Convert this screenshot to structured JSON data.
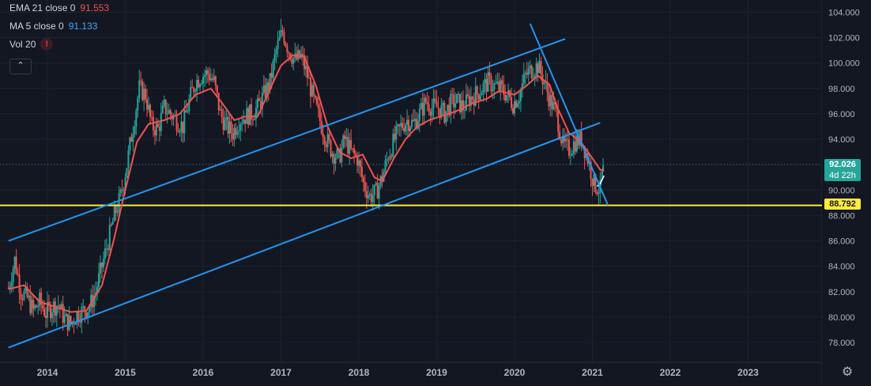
{
  "legend": {
    "ema": {
      "label": "EMA 21 close 0",
      "value": "91.553"
    },
    "ma": {
      "label": "MA 5 close 0",
      "value": "91.133"
    },
    "vol": {
      "label": "Vol 20",
      "warning": "!"
    },
    "collapse_icon": "chevron-up-icon"
  },
  "price_axis": {
    "labels": [
      "104.000",
      "102.000",
      "100.000",
      "98.000",
      "96.000",
      "94.000",
      "92.000",
      "90.000",
      "88.000",
      "86.000",
      "84.000",
      "82.000",
      "80.000",
      "78.000"
    ],
    "current_price": "92.026",
    "countdown": "4d 22h",
    "horizontal_line_price": "88.792"
  },
  "time_axis": {
    "labels": [
      "2014",
      "2015",
      "2016",
      "2017",
      "2018",
      "2019",
      "2020",
      "2021",
      "2022",
      "2023"
    ]
  },
  "colors": {
    "background": "#131722",
    "up_candle": "#26a69a",
    "down_candle": "#ef5350",
    "ema": "#ef5350",
    "trendline": "#2196f3",
    "horizontal_line": "#ffeb3b",
    "price_tag": "#26a69a"
  },
  "settings_icon": "gear-icon",
  "chart_data": {
    "type": "line",
    "title": "",
    "xlim": [
      2013.5,
      2023.7
    ],
    "ylim": [
      76.8,
      104.8
    ],
    "series": [
      {
        "name": "EMA 21 close 0",
        "points": [
          [
            2013.5,
            82.2
          ],
          [
            2013.7,
            82.5
          ],
          [
            2013.9,
            81.2
          ],
          [
            2014.1,
            80.8
          ],
          [
            2014.3,
            80.4
          ],
          [
            2014.5,
            80.5
          ],
          [
            2014.7,
            82.5
          ],
          [
            2014.85,
            86.0
          ],
          [
            2015.0,
            90.0
          ],
          [
            2015.15,
            93.8
          ],
          [
            2015.3,
            95.2
          ],
          [
            2015.5,
            95.5
          ],
          [
            2015.7,
            96.0
          ],
          [
            2015.9,
            97.5
          ],
          [
            2016.1,
            98.0
          ],
          [
            2016.25,
            96.8
          ],
          [
            2016.4,
            95.5
          ],
          [
            2016.55,
            95.8
          ],
          [
            2016.7,
            95.8
          ],
          [
            2016.9,
            98.5
          ],
          [
            2017.0,
            99.8
          ],
          [
            2017.15,
            100.6
          ],
          [
            2017.3,
            100.5
          ],
          [
            2017.45,
            98.2
          ],
          [
            2017.6,
            95.0
          ],
          [
            2017.75,
            93.0
          ],
          [
            2017.9,
            92.5
          ],
          [
            2018.05,
            92.8
          ],
          [
            2018.2,
            91.0
          ],
          [
            2018.3,
            90.7
          ],
          [
            2018.45,
            92.5
          ],
          [
            2018.6,
            94.0
          ],
          [
            2018.75,
            95.0
          ],
          [
            2018.9,
            95.5
          ],
          [
            2019.05,
            95.8
          ],
          [
            2019.25,
            96.2
          ],
          [
            2019.45,
            96.8
          ],
          [
            2019.65,
            97.2
          ],
          [
            2019.8,
            97.8
          ],
          [
            2020.0,
            97.5
          ],
          [
            2020.15,
            98.2
          ],
          [
            2020.3,
            99.0
          ],
          [
            2020.45,
            98.3
          ],
          [
            2020.55,
            96.5
          ],
          [
            2020.7,
            94.5
          ],
          [
            2020.85,
            93.8
          ],
          [
            2021.0,
            92.5
          ],
          [
            2021.1,
            91.6
          ],
          [
            2021.15,
            91.55
          ]
        ]
      },
      {
        "name": "MA 5 close 0",
        "points": [
          [
            2021.06,
            90.3
          ],
          [
            2021.1,
            90.5
          ],
          [
            2021.15,
            91.13
          ]
        ]
      }
    ],
    "ohlc": [
      [
        2013.5,
        82.3
      ],
      [
        2013.58,
        84.5
      ],
      [
        2013.66,
        82.0
      ],
      [
        2013.74,
        81.5
      ],
      [
        2013.82,
        80.5
      ],
      [
        2013.9,
        81.2
      ],
      [
        2013.98,
        80.3
      ],
      [
        2014.06,
        80.8
      ],
      [
        2014.14,
        81.0
      ],
      [
        2014.22,
        79.8
      ],
      [
        2014.3,
        79.5
      ],
      [
        2014.38,
        80.2
      ],
      [
        2014.46,
        80.5
      ],
      [
        2014.54,
        80.8
      ],
      [
        2014.62,
        82.0
      ],
      [
        2014.7,
        84.0
      ],
      [
        2014.78,
        86.0
      ],
      [
        2014.86,
        88.0
      ],
      [
        2014.94,
        89.5
      ],
      [
        2015.02,
        92.0
      ],
      [
        2015.1,
        95.0
      ],
      [
        2015.18,
        98.0
      ],
      [
        2015.26,
        97.5
      ],
      [
        2015.34,
        95.0
      ],
      [
        2015.42,
        94.8
      ],
      [
        2015.5,
        96.5
      ],
      [
        2015.58,
        96.0
      ],
      [
        2015.66,
        95.5
      ],
      [
        2015.74,
        95.0
      ],
      [
        2015.82,
        97.0
      ],
      [
        2015.9,
        98.5
      ],
      [
        2015.98,
        99.0
      ],
      [
        2016.06,
        99.2
      ],
      [
        2016.14,
        98.5
      ],
      [
        2016.22,
        96.0
      ],
      [
        2016.3,
        95.0
      ],
      [
        2016.38,
        94.5
      ],
      [
        2016.46,
        95.5
      ],
      [
        2016.54,
        95.8
      ],
      [
        2016.62,
        96.0
      ],
      [
        2016.7,
        96.5
      ],
      [
        2016.78,
        97.5
      ],
      [
        2016.86,
        98.5
      ],
      [
        2016.94,
        101.0
      ],
      [
        2017.02,
        102.5
      ],
      [
        2017.1,
        101.0
      ],
      [
        2017.18,
        100.2
      ],
      [
        2017.26,
        100.5
      ],
      [
        2017.34,
        99.0
      ],
      [
        2017.42,
        97.0
      ],
      [
        2017.5,
        95.5
      ],
      [
        2017.58,
        94.0
      ],
      [
        2017.66,
        93.0
      ],
      [
        2017.74,
        92.5
      ],
      [
        2017.82,
        94.0
      ],
      [
        2017.9,
        93.0
      ],
      [
        2017.98,
        92.5
      ],
      [
        2018.06,
        90.5
      ],
      [
        2018.14,
        89.5
      ],
      [
        2018.22,
        89.8
      ],
      [
        2018.3,
        91.0
      ],
      [
        2018.38,
        92.8
      ],
      [
        2018.46,
        94.0
      ],
      [
        2018.54,
        95.0
      ],
      [
        2018.62,
        95.5
      ],
      [
        2018.7,
        95.2
      ],
      [
        2018.78,
        96.0
      ],
      [
        2018.86,
        97.0
      ],
      [
        2018.94,
        96.5
      ],
      [
        2019.02,
        96.5
      ],
      [
        2019.1,
        96.0
      ],
      [
        2019.18,
        96.8
      ],
      [
        2019.26,
        97.0
      ],
      [
        2019.34,
        96.5
      ],
      [
        2019.42,
        97.2
      ],
      [
        2019.5,
        97.5
      ],
      [
        2019.58,
        98.0
      ],
      [
        2019.66,
        98.5
      ],
      [
        2019.74,
        98.2
      ],
      [
        2019.82,
        98.0
      ],
      [
        2019.9,
        97.5
      ],
      [
        2019.98,
        96.8
      ],
      [
        2020.06,
        97.5
      ],
      [
        2020.14,
        99.0
      ],
      [
        2020.22,
        99.5
      ],
      [
        2020.3,
        99.8
      ],
      [
        2020.38,
        98.5
      ],
      [
        2020.46,
        97.0
      ],
      [
        2020.54,
        96.0
      ],
      [
        2020.62,
        93.5
      ],
      [
        2020.7,
        93.2
      ],
      [
        2020.78,
        93.8
      ],
      [
        2020.86,
        94.0
      ],
      [
        2020.94,
        92.5
      ],
      [
        2021.02,
        90.5
      ],
      [
        2021.1,
        90.0
      ],
      [
        2021.15,
        92.0
      ]
    ],
    "trendlines": [
      {
        "from": [
          2013.5,
          86.0
        ],
        "to": [
          2020.65,
          101.9
        ]
      },
      {
        "from": [
          2013.5,
          77.6
        ],
        "to": [
          2021.1,
          95.3
        ]
      },
      {
        "from": [
          2020.2,
          103.1
        ],
        "to": [
          2021.2,
          88.8
        ]
      }
    ],
    "horizontal_line": 88.792,
    "current_price": 92.026,
    "grid": true
  }
}
